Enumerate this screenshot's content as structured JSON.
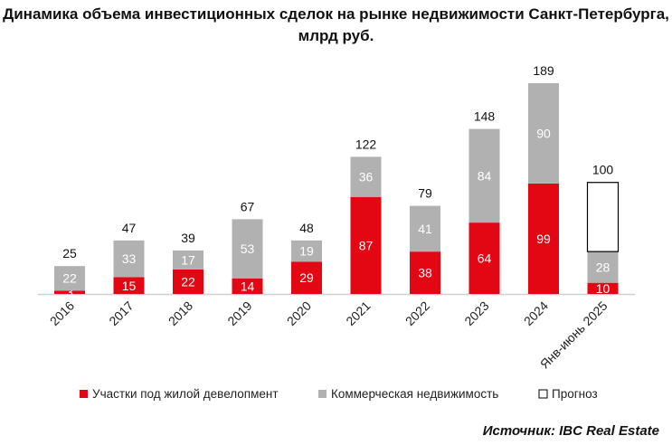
{
  "chart_data": {
    "type": "bar",
    "stacked": true,
    "title": "Динамика объема инвестиционных сделок на рынке недвижимости Санкт-Петербурга, млрд руб.",
    "categories": [
      "2016",
      "2017",
      "2018",
      "2019",
      "2020",
      "2021",
      "2022",
      "2023",
      "2024",
      "Янв-июнь 2025"
    ],
    "series": [
      {
        "name": "Участки под жилой девелопмент",
        "color": "#e30613",
        "values": [
          3,
          15,
          22,
          14,
          29,
          87,
          38,
          64,
          99,
          10
        ]
      },
      {
        "name": "Коммерческая недвижимость",
        "color": "#b1b1b1",
        "values": [
          22,
          33,
          17,
          53,
          19,
          36,
          41,
          84,
          90,
          28
        ]
      },
      {
        "name": "Прогноз",
        "color": "#ffffff",
        "values": [
          null,
          null,
          null,
          null,
          null,
          null,
          null,
          null,
          null,
          62
        ]
      }
    ],
    "totals": [
      "25",
      "47",
      "39",
      "67",
      "48",
      "122",
      "79",
      "148",
      "189",
      "100"
    ],
    "ylim": [
      0,
      189
    ],
    "legend": "bottom",
    "grid": false
  },
  "source": "Источник: IBC Real Estate"
}
